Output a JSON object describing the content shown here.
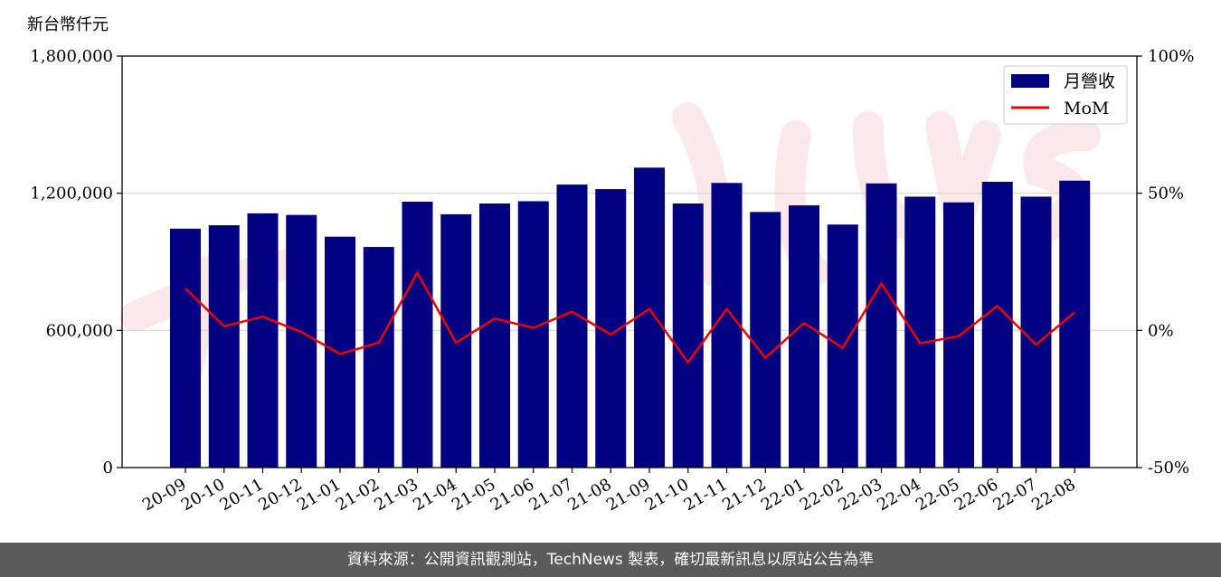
{
  "chart_data": {
    "type": "bar",
    "y_unit_label": "新台幣仟元",
    "categories": [
      "20-09",
      "20-10",
      "20-11",
      "20-12",
      "21-01",
      "21-02",
      "21-03",
      "21-04",
      "21-05",
      "21-06",
      "21-07",
      "21-08",
      "21-09",
      "21-10",
      "21-11",
      "21-12",
      "22-01",
      "22-02",
      "22-03",
      "22-04",
      "22-05",
      "22-06",
      "22-07",
      "22-08"
    ],
    "series": [
      {
        "name": "月營收",
        "type": "bar",
        "axis": "left",
        "color": "#000080",
        "values": [
          1045000,
          1060000,
          1112000,
          1105000,
          1010000,
          965000,
          1163000,
          1108000,
          1155000,
          1165000,
          1238000,
          1218000,
          1312000,
          1155000,
          1245000,
          1118000,
          1147000,
          1063000,
          1243000,
          1185000,
          1160000,
          1250000,
          1185000,
          1255000
        ]
      },
      {
        "name": "MoM",
        "type": "line",
        "axis": "right",
        "color": "#ee0000",
        "values": [
          15.3,
          1.5,
          5.0,
          -0.6,
          -8.6,
          -4.5,
          21.0,
          -4.5,
          4.3,
          0.9,
          6.8,
          -1.5,
          7.8,
          -11.7,
          7.8,
          -10.0,
          2.7,
          -6.4,
          17.1,
          -4.7,
          -2.1,
          8.9,
          -5.2,
          6.6
        ]
      }
    ],
    "ylim": [
      0,
      1800000
    ],
    "y_ticks": [
      "0",
      "600,000",
      "1,200,000",
      "1,800,000"
    ],
    "y_tick_values": [
      0,
      600000,
      1200000,
      1800000
    ],
    "y2lim": [
      -50,
      100
    ],
    "y2_ticks": [
      "-50%",
      "0%",
      "50%",
      "100%"
    ],
    "y2_tick_values": [
      -50,
      0,
      50,
      100
    ],
    "grid": "horizontal",
    "legend_position": "top-right"
  },
  "footer": {
    "source_text": "資料來源：公開資訊觀測站，TechNews 製表，確切最新訊息以原站公告為準"
  }
}
